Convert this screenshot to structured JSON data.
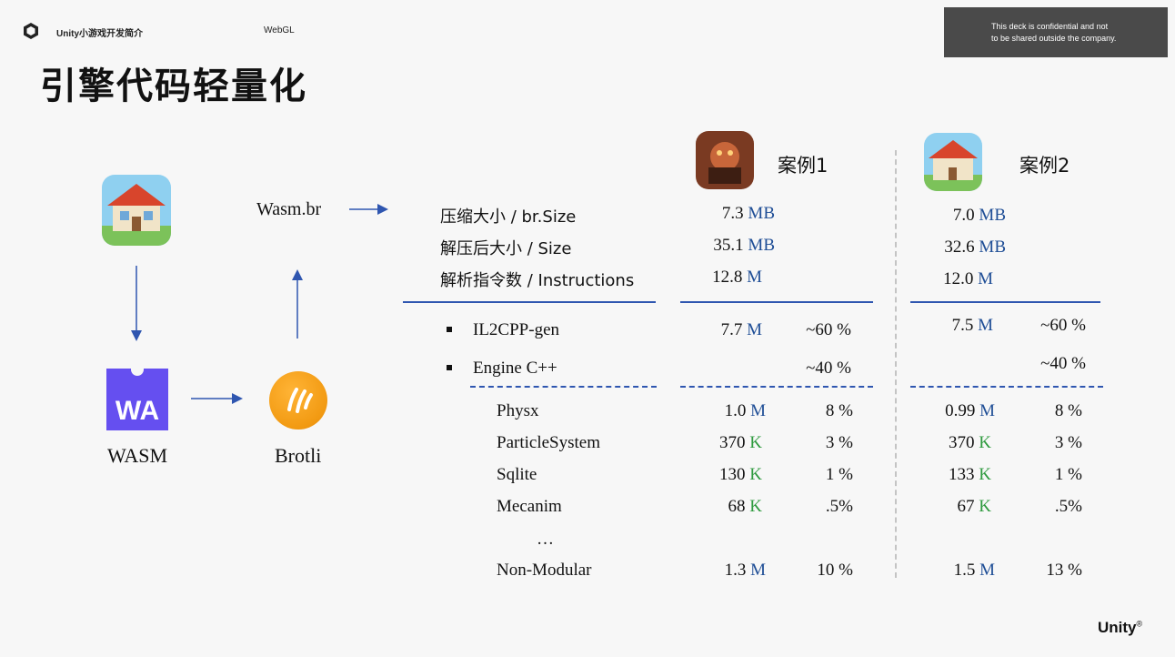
{
  "header": {
    "brand": "Unity小游戏开发简介",
    "platform": "WebGL",
    "confidential_line1": "This deck is confidential and not",
    "confidential_line2": "to be shared outside the company."
  },
  "title": "引擎代码轻量化",
  "diagram": {
    "wasm_br": "Wasm.br",
    "wa_icon_text": "WA",
    "wasm_label": "WASM",
    "brotli_label": "Brotli"
  },
  "cases": {
    "case1": "案例1",
    "case2": "案例2"
  },
  "summary_rows": [
    {
      "label": "压缩大小 / br.Size",
      "c1": "7.3",
      "c1_unit": "MB",
      "c2": "7.0",
      "c2_unit": "MB"
    },
    {
      "label": "解压后大小 / Size",
      "c1": "35.1",
      "c1_unit": "MB",
      "c2": "32.6",
      "c2_unit": "MB"
    },
    {
      "label": "解析指令数 / Instructions",
      "c1": "12.8",
      "c1_unit": "M",
      "c2": "12.0",
      "c2_unit": "M"
    }
  ],
  "split_rows": [
    {
      "label": "IL2CPP-gen",
      "c1": "7.7",
      "c1_unit": "M",
      "c1_pct": "~60 %",
      "c2": "7.5",
      "c2_unit": "M",
      "c2_pct": "~60 %"
    },
    {
      "label": "Engine C++",
      "c1": "",
      "c1_unit": "",
      "c1_pct": "~40 %",
      "c2": "",
      "c2_unit": "",
      "c2_pct": "~40 %"
    }
  ],
  "module_rows": [
    {
      "label": "Physx",
      "c1": "1.0",
      "c1_unit": "M",
      "c1_pct": "8 %",
      "c2": "0.99",
      "c2_unit": "M",
      "c2_pct": "8 %"
    },
    {
      "label": "ParticleSystem",
      "c1": "370",
      "c1_unit": "K",
      "c1_pct": "3 %",
      "c2": "370",
      "c2_unit": "K",
      "c2_pct": "3 %"
    },
    {
      "label": "Sqlite",
      "c1": "130",
      "c1_unit": "K",
      "c1_pct": "1 %",
      "c2": "133",
      "c2_unit": "K",
      "c2_pct": "1 %"
    },
    {
      "label": "Mecanim",
      "c1": "68",
      "c1_unit": "K",
      "c1_pct": ".5%",
      "c2": "67",
      "c2_unit": "K",
      "c2_pct": ".5%"
    },
    {
      "label": "…",
      "c1": "",
      "c1_unit": "",
      "c1_pct": "",
      "c2": "",
      "c2_unit": "",
      "c2_pct": ""
    },
    {
      "label": "Non-Modular",
      "c1": "1.3",
      "c1_unit": "M",
      "c1_pct": "10 %",
      "c2": "1.5",
      "c2_unit": "M",
      "c2_pct": "13 %"
    }
  ],
  "footer": {
    "unity": "Unity",
    "reg": "®"
  },
  "colors": {
    "accent_blue": "#2f56b0",
    "unit_M": "#1f4e96",
    "unit_K": "#2e9a3e",
    "wasm_purple": "#654ff0",
    "brotli_orange": "#f29a12"
  }
}
